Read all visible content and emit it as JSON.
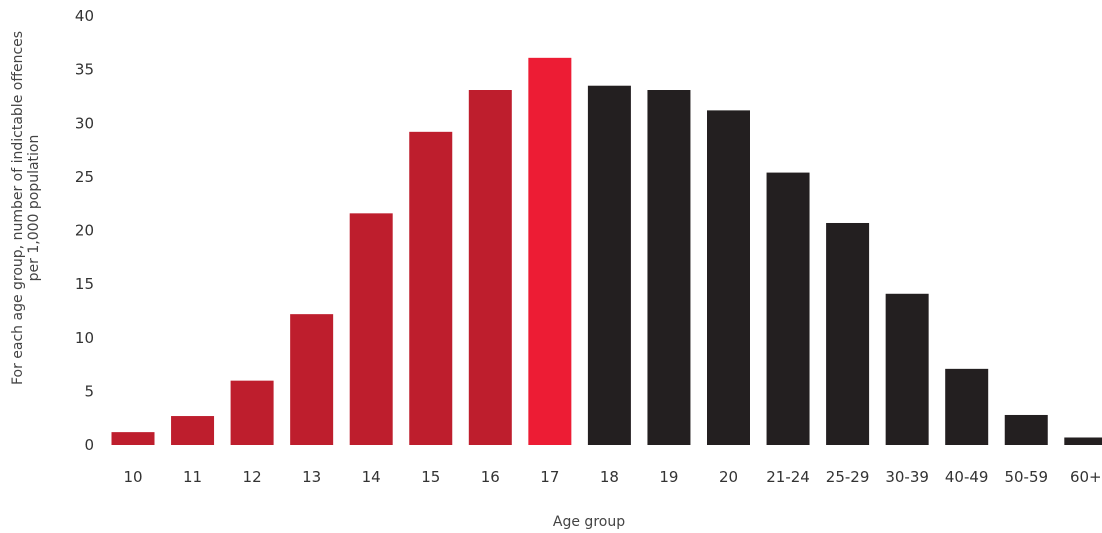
{
  "chart_data": {
    "type": "bar",
    "xlabel": "Age group",
    "ylabel_lines": [
      "For each age group, number of indictable offences",
      "per 1,000 population"
    ],
    "ylim": [
      0,
      40
    ],
    "yticks": [
      0,
      5,
      10,
      15,
      20,
      25,
      30,
      35,
      40
    ],
    "grid": false,
    "categories": [
      "10",
      "11",
      "12",
      "13",
      "14",
      "15",
      "16",
      "17",
      "18",
      "19",
      "20",
      "21-24",
      "25-29",
      "30-39",
      "40-49",
      "50-59",
      "60+"
    ],
    "values": [
      1.2,
      2.7,
      6.0,
      12.2,
      21.6,
      29.2,
      33.1,
      36.1,
      33.5,
      33.1,
      31.2,
      25.4,
      20.7,
      14.1,
      7.1,
      2.8,
      0.7
    ],
    "colors": {
      "juvenile": "#be1e2d",
      "highlight": "#ed1c34",
      "adult": "#231f20"
    },
    "bar_color_groups": [
      "juvenile",
      "juvenile",
      "juvenile",
      "juvenile",
      "juvenile",
      "juvenile",
      "juvenile",
      "highlight",
      "adult",
      "adult",
      "adult",
      "adult",
      "adult",
      "adult",
      "adult",
      "adult",
      "adult"
    ]
  }
}
